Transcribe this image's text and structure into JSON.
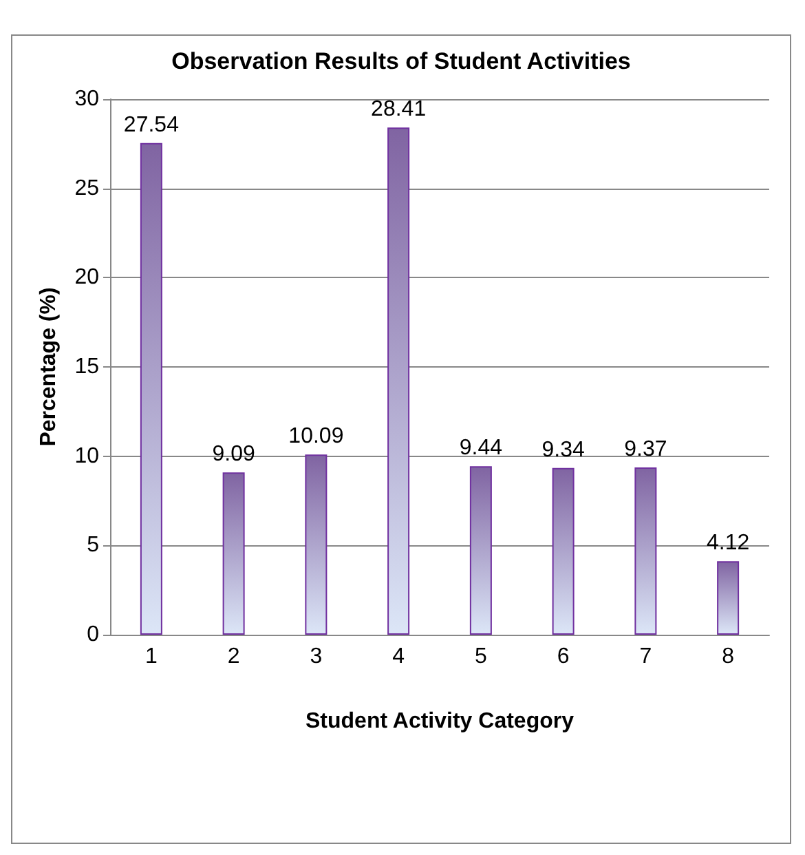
{
  "chart_data": {
    "type": "bar",
    "title": "Observation Results of Student Activities",
    "xlabel": "Student Activity Category",
    "ylabel": "Percentage (%)",
    "categories": [
      "1",
      "2",
      "3",
      "4",
      "5",
      "6",
      "7",
      "8"
    ],
    "values": [
      27.54,
      9.09,
      10.09,
      28.41,
      9.44,
      9.34,
      9.37,
      4.12
    ],
    "color": "#7030a0",
    "ylim": [
      0,
      30
    ],
    "yticks": [
      0,
      5,
      10,
      15,
      20,
      25,
      30
    ],
    "grid": "y",
    "data_labels": true
  }
}
